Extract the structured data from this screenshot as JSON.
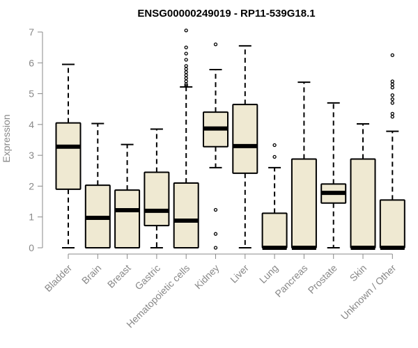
{
  "chart_data": {
    "type": "box",
    "title": "ENSG00000249019 - RP11-539G18.1",
    "ylabel": "Expression",
    "xlabel": "",
    "ylim": [
      0,
      7
    ],
    "yticks": [
      0,
      1,
      2,
      3,
      4,
      5,
      6,
      7
    ],
    "grid": false,
    "colors": {
      "box_fill": "#efe9d2",
      "stroke": "#000000",
      "axis": "#888888"
    },
    "categories": [
      "Bladder",
      "Brain",
      "Breast",
      "Gastric",
      "Hematopoietic cells",
      "Kidney",
      "Liver",
      "Lung",
      "Pancreas",
      "Prostate",
      "Skin",
      "Unknown / Other"
    ],
    "boxes": [
      {
        "whisker_low": 0,
        "q1": 1.9,
        "median": 3.28,
        "q3": 4.05,
        "whisker_high": 5.95,
        "outliers": []
      },
      {
        "whisker_low": 0,
        "q1": 0,
        "median": 0.97,
        "q3": 2.03,
        "whisker_high": 4.03,
        "outliers": []
      },
      {
        "whisker_low": 0,
        "q1": 0,
        "median": 1.22,
        "q3": 1.87,
        "whisker_high": 3.35,
        "outliers": []
      },
      {
        "whisker_low": 0,
        "q1": 0.72,
        "median": 1.2,
        "q3": 2.45,
        "whisker_high": 3.85,
        "outliers": []
      },
      {
        "whisker_low": 0,
        "q1": 0,
        "median": 0.88,
        "q3": 2.1,
        "whisker_high": 5.22,
        "outliers": [
          5.25,
          5.3,
          5.4,
          5.5,
          5.6,
          5.7,
          5.8,
          5.9,
          6.1,
          6.3,
          6.5,
          7.05
        ]
      },
      {
        "whisker_low": 2.6,
        "q1": 3.28,
        "median": 3.87,
        "q3": 4.4,
        "whisker_high": 5.78,
        "outliers": [
          6.6,
          1.23,
          0.45,
          0
        ]
      },
      {
        "whisker_low": 0,
        "q1": 2.42,
        "median": 3.3,
        "q3": 4.65,
        "whisker_high": 6.55,
        "outliers": []
      },
      {
        "whisker_low": 0,
        "q1": 0,
        "median": 0,
        "q3": 1.12,
        "whisker_high": 2.6,
        "outliers": [
          2.95,
          3.33
        ]
      },
      {
        "whisker_low": 0,
        "q1": 0,
        "median": 0,
        "q3": 2.88,
        "whisker_high": 5.37,
        "outliers": []
      },
      {
        "whisker_low": 0,
        "q1": 1.45,
        "median": 1.78,
        "q3": 2.07,
        "whisker_high": 4.7,
        "outliers": []
      },
      {
        "whisker_low": 0,
        "q1": 0,
        "median": 0,
        "q3": 2.88,
        "whisker_high": 4.02,
        "outliers": []
      },
      {
        "whisker_low": 0,
        "q1": 0,
        "median": 0,
        "q3": 1.55,
        "whisker_high": 3.78,
        "outliers": [
          4.25,
          4.35,
          4.7,
          4.82,
          4.95,
          5.2,
          5.3,
          5.4,
          6.25
        ]
      }
    ]
  }
}
